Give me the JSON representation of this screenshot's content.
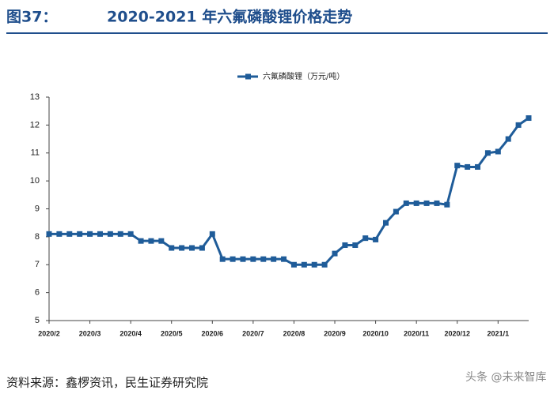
{
  "chart_data": {
    "type": "line",
    "figure_label": "图37：",
    "title": "2020-2021 年六氟磷酸锂价格走势",
    "source": "资料来源：鑫椤资讯，民生证券研究院",
    "watermark": "头条 @未来智库",
    "categories": [
      "2020/2",
      null,
      null,
      null,
      "2020/3",
      null,
      null,
      null,
      "2020/4",
      null,
      null,
      null,
      "2020/5",
      null,
      null,
      null,
      "2020/6",
      null,
      null,
      null,
      "2020/7",
      null,
      null,
      null,
      "2020/8",
      null,
      null,
      null,
      "2020/9",
      null,
      null,
      null,
      "2020/10",
      null,
      null,
      null,
      "2020/11",
      null,
      null,
      null,
      "2020/12",
      null,
      null,
      null,
      "2021/1",
      null,
      null,
      null
    ],
    "series": [
      {
        "name": "六氟磷酸锂（万元/吨）",
        "color": "#1f5c99",
        "values": [
          8.1,
          8.1,
          8.1,
          8.1,
          8.1,
          8.1,
          8.1,
          8.1,
          8.1,
          7.85,
          7.85,
          7.85,
          7.6,
          7.6,
          7.6,
          7.6,
          8.1,
          7.2,
          7.2,
          7.2,
          7.2,
          7.2,
          7.2,
          7.2,
          7.0,
          7.0,
          7.0,
          7.0,
          7.4,
          7.7,
          7.7,
          7.95,
          7.9,
          8.5,
          8.9,
          9.2,
          9.2,
          9.2,
          9.2,
          9.15,
          10.55,
          10.5,
          10.5,
          11.0,
          11.05,
          11.5,
          12.0,
          12.25
        ]
      }
    ],
    "ylim": [
      5,
      13
    ],
    "yticks": [
      5,
      6,
      7,
      8,
      9,
      10,
      11,
      12,
      13
    ],
    "grid": false,
    "legend": "top"
  }
}
